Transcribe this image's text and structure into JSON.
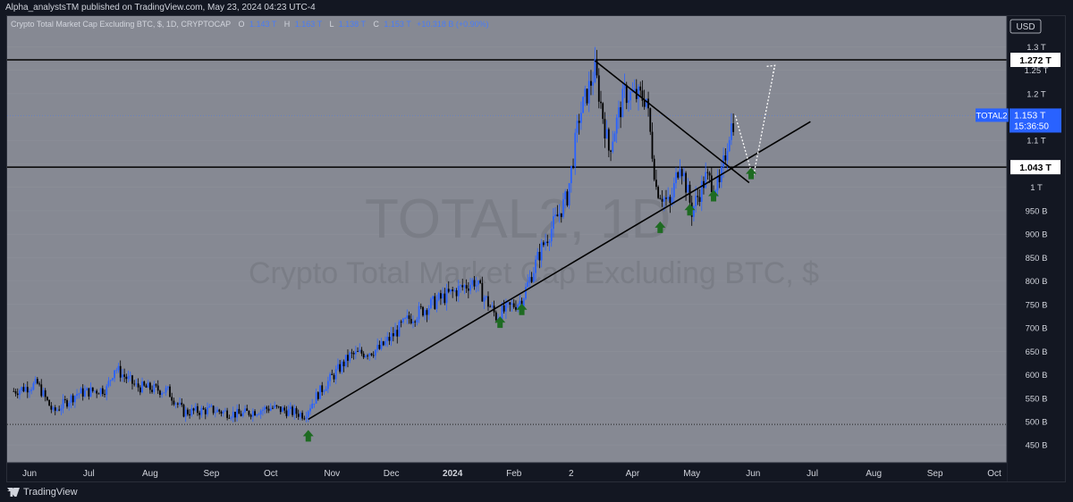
{
  "header": {
    "publisher_line": "Alpha_analystsTM published on TradingView.com, May 23, 2024 04:23 UTC-4"
  },
  "legend": {
    "symbol_line": "Crypto Total Market Cap Excluding BTC, $, 1D, CRYPTOCAP",
    "o_label": "O",
    "o_value": "1.143 T",
    "h_label": "H",
    "h_value": "1.163 T",
    "l_label": "L",
    "l_value": "1.138 T",
    "c_label": "C",
    "c_value": "1.153 T",
    "change": "+10.318 B (+0.90%)"
  },
  "watermark": {
    "ticker": "TOTAL2, 1D",
    "description": "Crypto Total Market Cap Excluding BTC, $"
  },
  "price_axis": {
    "currency": "USD",
    "ticks": [
      "1.3 T",
      "1.25 T",
      "1.2 T",
      "1.1 T",
      "1 T",
      "950 B",
      "900 B",
      "850 B",
      "800 B",
      "750 B",
      "700 B",
      "650 B",
      "600 B",
      "550 B",
      "500 B",
      "450 B"
    ],
    "current_symbol": "TOTAL2",
    "current_price": "1.153 T",
    "countdown": "15:36:50",
    "level_high_label": "1.272 T",
    "level_mid_label": "1.043 T"
  },
  "time_axis": {
    "labels": [
      "Jun",
      "Jul",
      "Aug",
      "Sep",
      "Oct",
      "Nov",
      "Dec",
      "2024",
      "Feb",
      "2",
      "Apr",
      "May",
      "Jun",
      "Jul",
      "Aug",
      "Sep",
      "Oct"
    ]
  },
  "footer": {
    "brand": "TradingView"
  },
  "chart_data": {
    "type": "candlestick",
    "series_name": "TOTAL2",
    "y_unit": "USD",
    "ylim": [
      430,
      1330
    ],
    "horizontal_levels": [
      {
        "value": 1272,
        "label": "1.272 T"
      },
      {
        "value": 1043,
        "label": "1.043 T"
      },
      {
        "value": 494,
        "style": "dotted"
      }
    ],
    "trendline_support": {
      "from": {
        "date": "2023-10-20",
        "value": 505
      },
      "to": {
        "date": "2024-06-30",
        "value": 1140
      }
    },
    "trendline_resistance": {
      "from": {
        "date": "2024-03-13",
        "value": 1270
      },
      "to": {
        "date": "2024-05-30",
        "value": 1010
      }
    },
    "projection_path": [
      {
        "date": "2024-05-23",
        "value": 1153
      },
      {
        "date": "2024-06-01",
        "value": 1020
      },
      {
        "date": "2024-06-12",
        "value": 1260
      }
    ],
    "arrow_markers_dates": [
      "2023-10-20",
      "2024-01-25",
      "2024-02-05",
      "2024-04-15",
      "2024-04-30",
      "2024-05-12",
      "2024-05-31"
    ],
    "candles_approx": [
      {
        "date": "2023-05-24",
        "close": 565
      },
      {
        "date": "2023-06-05",
        "close": 580
      },
      {
        "date": "2023-06-13",
        "close": 520
      },
      {
        "date": "2023-06-25",
        "close": 560
      },
      {
        "date": "2023-07-10",
        "close": 570
      },
      {
        "date": "2023-07-14",
        "close": 615
      },
      {
        "date": "2023-07-25",
        "close": 575
      },
      {
        "date": "2023-08-10",
        "close": 565
      },
      {
        "date": "2023-08-18",
        "close": 520
      },
      {
        "date": "2023-09-01",
        "close": 525
      },
      {
        "date": "2023-09-15",
        "close": 515
      },
      {
        "date": "2023-10-01",
        "close": 530
      },
      {
        "date": "2023-10-18",
        "close": 515
      },
      {
        "date": "2023-10-25",
        "close": 560
      },
      {
        "date": "2023-11-10",
        "close": 640
      },
      {
        "date": "2023-11-25",
        "close": 655
      },
      {
        "date": "2023-12-10",
        "close": 720
      },
      {
        "date": "2023-12-25",
        "close": 760
      },
      {
        "date": "2024-01-03",
        "close": 780
      },
      {
        "date": "2024-01-12",
        "close": 800
      },
      {
        "date": "2024-01-23",
        "close": 725
      },
      {
        "date": "2024-02-05",
        "close": 760
      },
      {
        "date": "2024-02-15",
        "close": 870
      },
      {
        "date": "2024-02-28",
        "close": 980
      },
      {
        "date": "2024-03-05",
        "close": 1150
      },
      {
        "date": "2024-03-13",
        "close": 1250
      },
      {
        "date": "2024-03-20",
        "close": 1080
      },
      {
        "date": "2024-03-28",
        "close": 1200
      },
      {
        "date": "2024-04-08",
        "close": 1190
      },
      {
        "date": "2024-04-13",
        "close": 1000
      },
      {
        "date": "2024-04-20",
        "close": 960
      },
      {
        "date": "2024-04-25",
        "close": 1060
      },
      {
        "date": "2024-05-01",
        "close": 950
      },
      {
        "date": "2024-05-08",
        "close": 1020
      },
      {
        "date": "2024-05-15",
        "close": 1000
      },
      {
        "date": "2024-05-20",
        "close": 1120
      },
      {
        "date": "2024-05-23",
        "close": 1153
      }
    ]
  }
}
